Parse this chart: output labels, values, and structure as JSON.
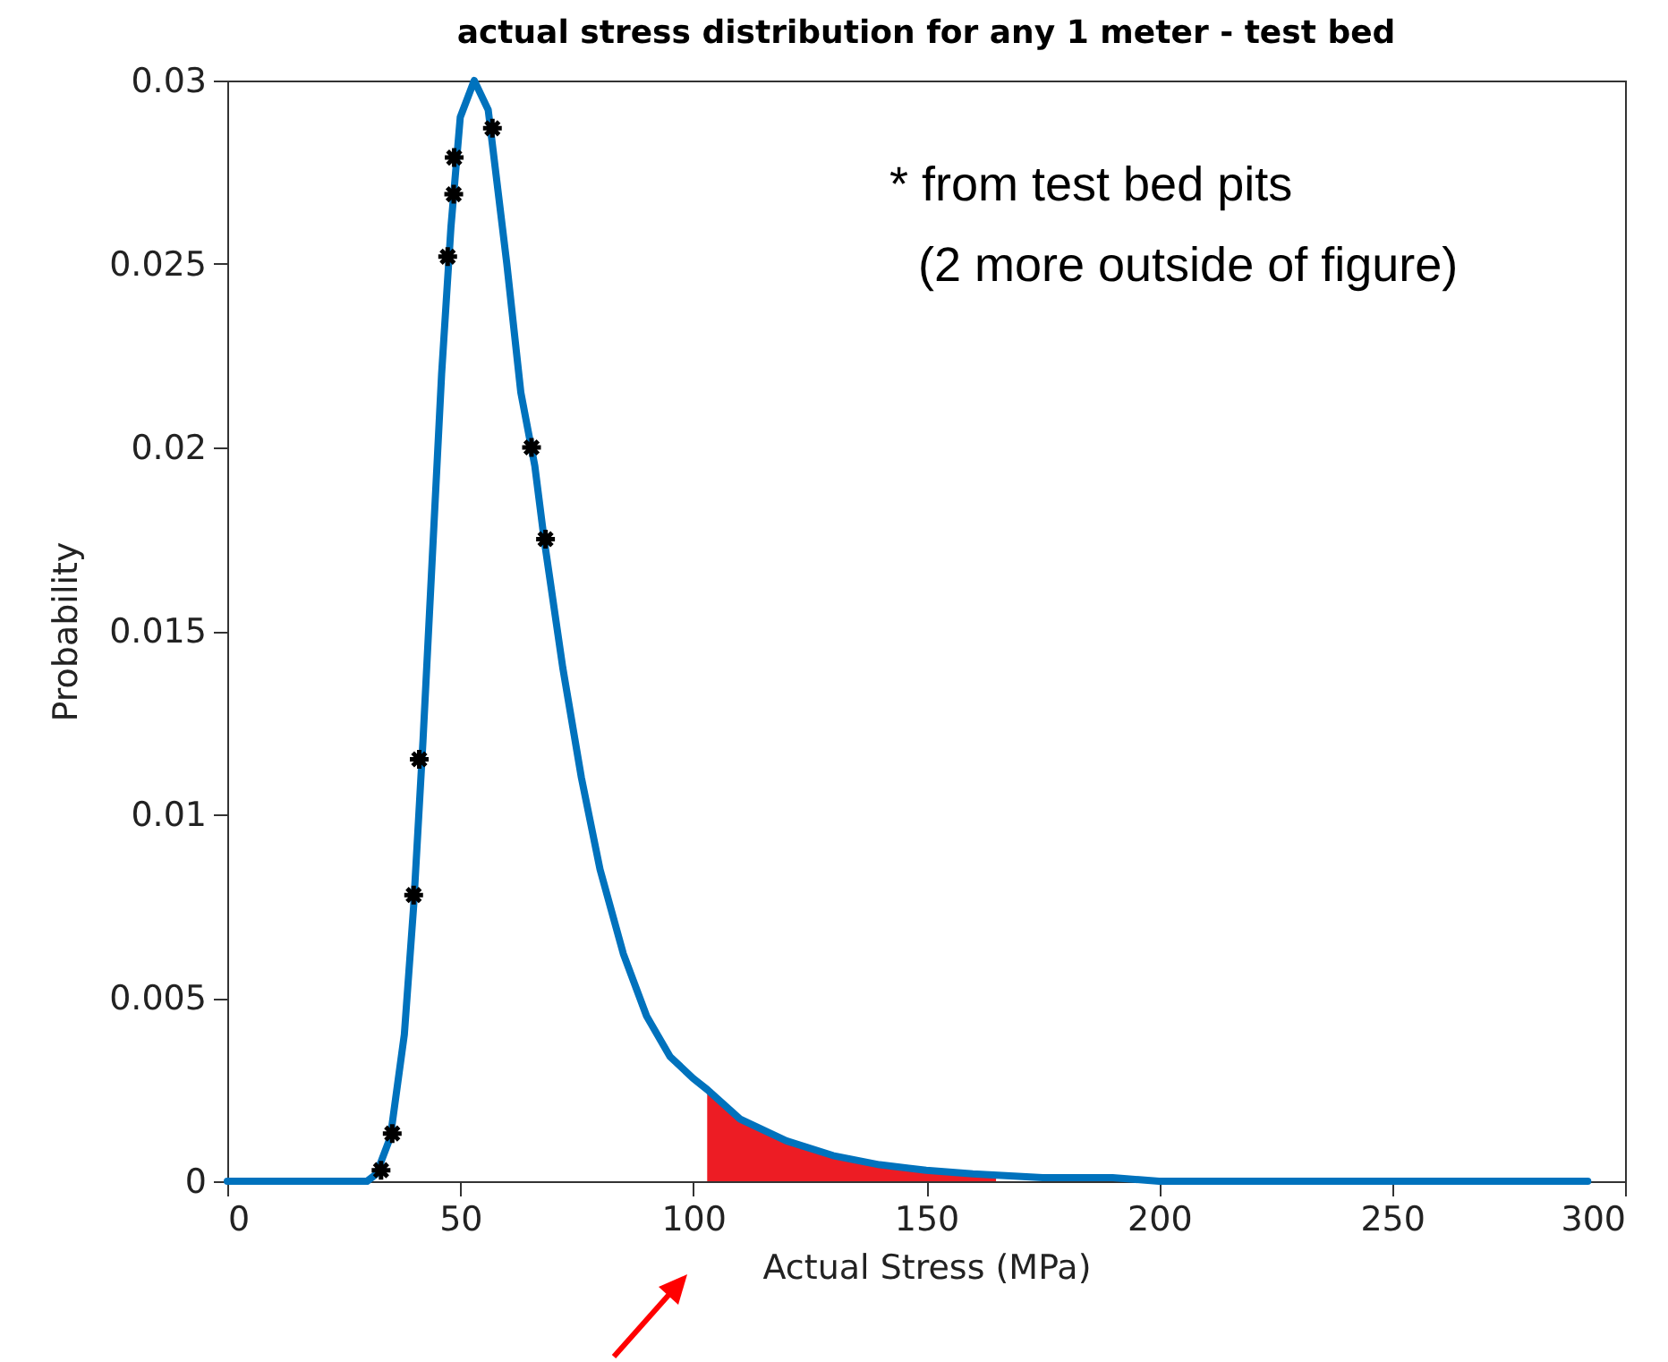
{
  "chart_data": {
    "type": "line",
    "title": "actual stress distribution for any 1 meter - test bed",
    "xlabel": "Actual Stress (MPa)",
    "ylabel": "Probability",
    "xlim": [
      0,
      300
    ],
    "xticks": [
      0,
      50,
      100,
      150,
      200,
      250,
      300
    ],
    "ylim": [
      0,
      0.03
    ],
    "yticks": [
      0,
      0.005,
      0.01,
      0.015,
      0.02,
      0.025,
      0.03
    ],
    "grid": false,
    "annotations": [
      "* from test bed pits",
      "(2 more outside of figure)"
    ],
    "series": [
      {
        "type": "area",
        "color": "#ed1c24",
        "x": [
          103,
          110,
          120,
          130,
          140,
          150,
          160,
          165
        ],
        "values": [
          0.0025,
          0.0017,
          0.0011,
          0.0007,
          0.00045,
          0.0003,
          0.0002,
          0.00015
        ]
      },
      {
        "type": "line",
        "color": "#0072bd",
        "x": [
          0,
          10,
          20,
          30,
          32,
          35,
          38,
          40,
          42,
          44,
          46,
          48,
          50,
          53,
          56,
          60,
          63,
          66,
          68,
          72,
          76,
          80,
          85,
          90,
          95,
          100,
          103,
          110,
          120,
          130,
          140,
          150,
          160,
          175,
          190,
          200,
          250,
          292
        ],
        "values": [
          0,
          0,
          0,
          0,
          0.0002,
          0.0012,
          0.004,
          0.0075,
          0.012,
          0.017,
          0.022,
          0.026,
          0.029,
          0.03,
          0.0292,
          0.025,
          0.0215,
          0.0195,
          0.0175,
          0.014,
          0.011,
          0.0085,
          0.0062,
          0.0045,
          0.0034,
          0.0028,
          0.0025,
          0.0017,
          0.0011,
          0.0007,
          0.00045,
          0.0003,
          0.0002,
          0.0001,
          0.0001,
          0,
          0,
          0
        ]
      },
      {
        "type": "scatter",
        "color": "#000000",
        "marker": "cross",
        "x": [
          33,
          35.4,
          40,
          41.2,
          47.3,
          48.6,
          48.7,
          56.9,
          65.3,
          68.3
        ],
        "values": [
          0.0003,
          0.0013,
          0.0078,
          0.0115,
          0.0252,
          0.0269,
          0.0279,
          0.0287,
          0.02,
          0.0175
        ]
      }
    ]
  }
}
